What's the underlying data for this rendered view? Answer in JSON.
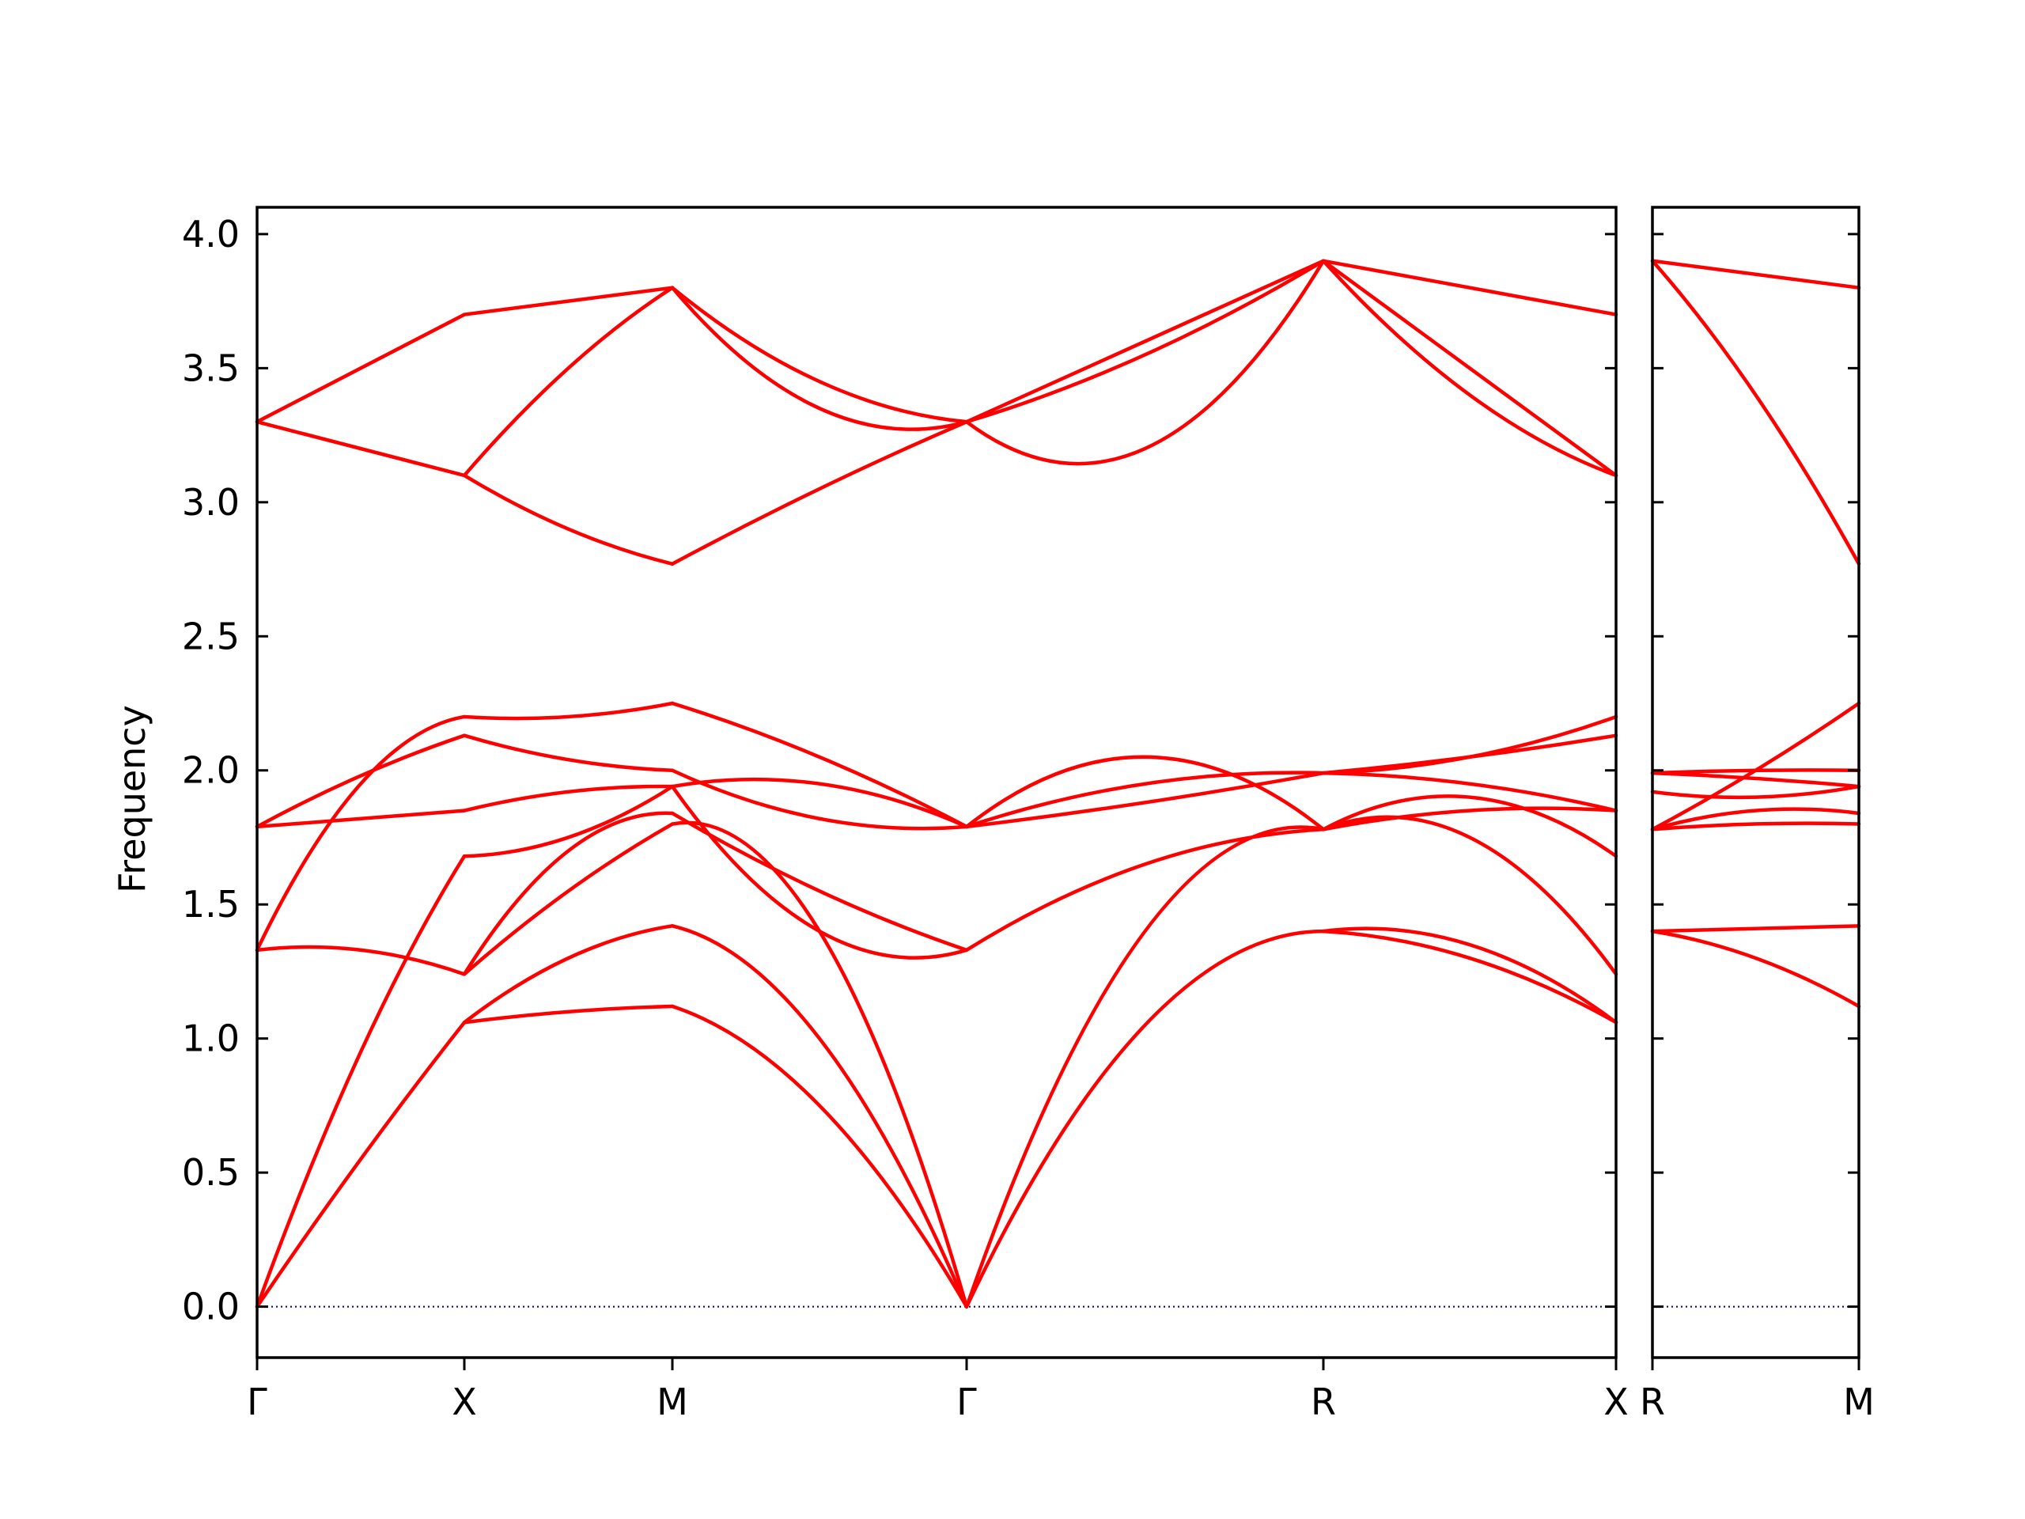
{
  "chart_data": {
    "type": "line",
    "title": "",
    "ylabel": "Frequency",
    "xlabel": "",
    "ylim": [
      -0.19,
      4.1
    ],
    "yticks": [
      "0.0",
      "0.5",
      "1.0",
      "1.5",
      "2.0",
      "2.5",
      "3.0",
      "3.5",
      "4.0"
    ],
    "grid": false,
    "legend": "none",
    "colors": {
      "bands": "#ff0000",
      "zero_line": "#00008b",
      "axes": "#000000"
    },
    "panels": [
      {
        "name": "main",
        "high_symmetry_labels": [
          "Γ",
          "X",
          "M",
          "Γ",
          "R",
          "X"
        ],
        "segments": [
          {
            "from": "Γ",
            "to": "X",
            "bands": [
              [
                0.0,
                0.55,
                1.06
              ],
              [
                0.0,
                0.95,
                1.68
              ],
              [
                1.33,
                1.33,
                1.24
              ],
              [
                1.33,
                1.95,
                2.2
              ],
              [
                1.79,
                1.82,
                1.85
              ],
              [
                1.79,
                1.98,
                2.13
              ],
              [
                3.3,
                3.2,
                3.1
              ],
              [
                3.3,
                3.5,
                3.7
              ]
            ]
          },
          {
            "from": "X",
            "to": "M",
            "bands": [
              [
                1.06,
                1.1,
                1.12
              ],
              [
                1.06,
                1.3,
                1.42
              ],
              [
                1.24,
                1.55,
                1.8
              ],
              [
                1.24,
                1.7,
                1.84
              ],
              [
                1.68,
                1.75,
                1.94
              ],
              [
                1.85,
                1.92,
                1.94
              ],
              [
                2.13,
                2.04,
                2.0
              ],
              [
                2.2,
                2.2,
                2.25
              ],
              [
                3.1,
                2.9,
                2.77
              ],
              [
                3.1,
                3.5,
                3.8
              ],
              [
                3.7,
                3.75,
                3.8
              ]
            ]
          },
          {
            "from": "M",
            "to": "Γ",
            "bands": [
              [
                1.12,
                0.75,
                0.0
              ],
              [
                1.42,
                1.0,
                0.0
              ],
              [
                1.8,
                1.4,
                0.0
              ],
              [
                1.84,
                1.55,
                1.33
              ],
              [
                1.94,
                1.4,
                1.33
              ],
              [
                1.94,
                1.95,
                1.79
              ],
              [
                2.0,
                1.82,
                1.79
              ],
              [
                2.25,
                2.05,
                1.79
              ],
              [
                2.77,
                3.05,
                3.3
              ],
              [
                3.8,
                3.35,
                3.3
              ],
              [
                3.8,
                3.45,
                3.3
              ]
            ]
          },
          {
            "from": "Γ",
            "to": "R",
            "bands": [
              [
                0.0,
                1.05,
                1.4
              ],
              [
                0.0,
                1.4,
                1.78
              ],
              [
                1.33,
                1.65,
                1.78
              ],
              [
                1.79,
                2.05,
                1.78
              ],
              [
                1.79,
                1.88,
                1.99
              ],
              [
                1.79,
                1.95,
                1.99
              ],
              [
                3.3,
                3.2,
                3.9
              ],
              [
                3.3,
                3.55,
                3.9
              ],
              [
                3.3,
                3.6,
                3.9
              ]
            ]
          },
          {
            "from": "R",
            "to": "X",
            "bands": [
              [
                1.4,
                1.3,
                1.06
              ],
              [
                1.4,
                1.35,
                1.06
              ],
              [
                1.78,
                1.75,
                1.24
              ],
              [
                1.78,
                1.9,
                1.68
              ],
              [
                1.78,
                1.85,
                1.85
              ],
              [
                1.99,
                1.95,
                1.85
              ],
              [
                1.99,
                2.05,
                2.13
              ],
              [
                1.99,
                2.05,
                2.2
              ],
              [
                3.9,
                3.4,
                3.1
              ],
              [
                3.9,
                3.5,
                3.1
              ],
              [
                3.9,
                3.8,
                3.7
              ]
            ]
          }
        ]
      },
      {
        "name": "right",
        "high_symmetry_labels": [
          "R",
          "M"
        ],
        "segments": [
          {
            "from": "R",
            "to": "M",
            "bands": [
              [
                1.4,
                1.41,
                1.42
              ],
              [
                1.4,
                1.3,
                1.12
              ],
              [
                1.78,
                1.8,
                1.8
              ],
              [
                1.78,
                2.0,
                2.25
              ],
              [
                1.78,
                1.85,
                1.84
              ],
              [
                1.92,
                1.9,
                1.94
              ],
              [
                1.99,
                1.97,
                1.94
              ],
              [
                1.99,
                2.0,
                2.0
              ],
              [
                3.9,
                3.4,
                2.77
              ],
              [
                3.9,
                3.85,
                3.8
              ]
            ]
          }
        ]
      }
    ]
  }
}
